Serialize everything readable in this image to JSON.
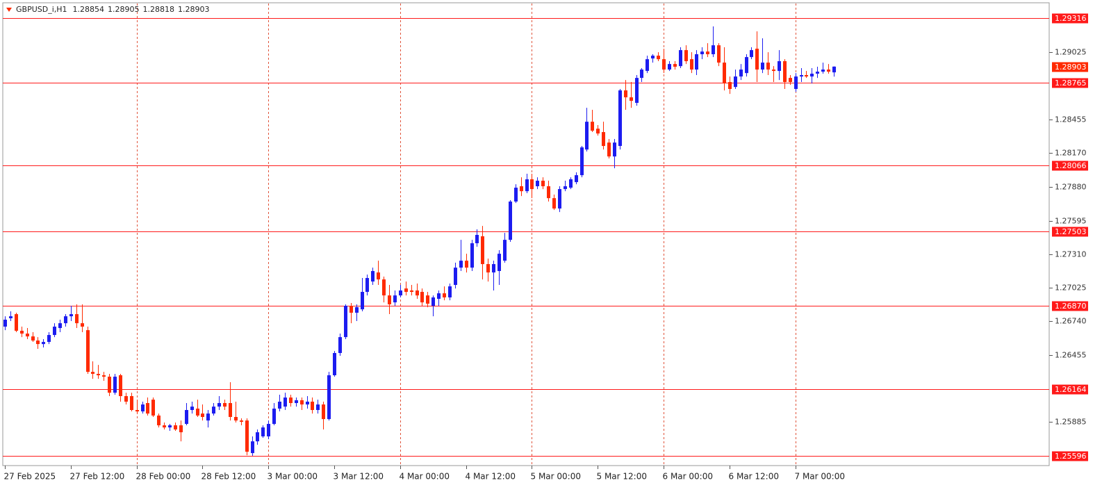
{
  "chart_data": {
    "type": "candlestick",
    "title": "GBPUSD_i,H1",
    "up_color": "#1c1cf0",
    "down_color": "#ff2a00",
    "level_color": "#ff1a1a",
    "categories": [
      "27 Feb 2025",
      null,
      null,
      null,
      null,
      null,
      null,
      null,
      null,
      null,
      null,
      null,
      "27 Feb 12:00",
      null,
      null,
      null,
      null,
      null,
      null,
      null,
      null,
      null,
      null,
      null,
      "28 Feb 00:00",
      null,
      null,
      null,
      null,
      null,
      null,
      null,
      null,
      null,
      null,
      null,
      "28 Feb 12:00",
      null,
      null,
      null,
      null,
      null,
      null,
      null,
      null,
      null,
      null,
      null,
      "3 Mar 00:00",
      null,
      null,
      null,
      null,
      null,
      null,
      null,
      null,
      null,
      null,
      null,
      "3 Mar 12:00",
      null,
      null,
      null,
      null,
      null,
      null,
      null,
      null,
      null,
      null,
      null,
      "4 Mar 00:00",
      null,
      null,
      null,
      null,
      null,
      null,
      null,
      null,
      null,
      null,
      null,
      "4 Mar 12:00",
      null,
      null,
      null,
      null,
      null,
      null,
      null,
      null,
      null,
      null,
      null,
      "5 Mar 00:00",
      null,
      null,
      null,
      null,
      null,
      null,
      null,
      null,
      null,
      null,
      null,
      "5 Mar 12:00",
      null,
      null,
      null,
      null,
      null,
      null,
      null,
      null,
      null,
      null,
      null,
      "6 Mar 00:00",
      null,
      null,
      null,
      null,
      null,
      null,
      null,
      null,
      null,
      null,
      null,
      "6 Mar 12:00",
      null,
      null,
      null,
      null,
      null,
      null,
      null,
      null,
      null,
      null,
      null,
      "7 Mar 00:00",
      null,
      null,
      null,
      null,
      null,
      null,
      null
    ],
    "open": [
      1.26695,
      1.26766,
      1.26801,
      1.2666,
      1.26636,
      1.26612,
      1.26577,
      1.26547,
      1.26565,
      1.26624,
      1.26683,
      1.26724,
      1.26783,
      1.26801,
      1.26724,
      1.26665,
      1.26311,
      1.26294,
      1.26282,
      1.2627,
      1.26134,
      1.26282,
      1.26105,
      1.26105,
      1.25987,
      1.25975,
      1.26046,
      1.26075,
      1.2594,
      1.25857,
      1.25839,
      1.25857,
      1.25857,
      1.25869,
      1.25987,
      1.25999,
      1.25957,
      1.25898,
      1.25957,
      1.26016,
      1.26046,
      1.26046,
      1.25928,
      1.25898,
      1.25898,
      1.25621,
      1.25721,
      1.25763,
      1.25763,
      1.25869,
      1.25999,
      1.26016,
      1.26093,
      1.26046,
      1.2607,
      1.26034,
      1.26058,
      1.25987,
      1.26034,
      1.2591,
      1.26282,
      1.26471,
      1.26606,
      1.26872,
      1.26813,
      1.26842,
      1.2699,
      1.27078,
      1.27155,
      1.27096,
      1.2696,
      1.26901,
      1.2696,
      1.27019,
      1.27002,
      1.27002,
      1.2699,
      1.2696,
      1.26872,
      1.26931,
      1.26978,
      1.26943,
      1.27049,
      1.27196,
      1.27255,
      1.27196,
      1.27403,
      1.27462,
      1.27226,
      1.27155,
      1.27167,
      1.27255,
      1.27432,
      1.27757,
      1.27887,
      1.27845,
      1.27946,
      1.27887,
      1.27934,
      1.27887,
      1.27786,
      1.27698,
      1.27863,
      1.27875,
      1.27922,
      1.27981,
      1.28199,
      1.28435,
      1.28376,
      1.28347,
      1.28258,
      1.2814,
      1.28229,
      1.28701,
      1.28642,
      1.28595,
      1.28807,
      1.28866,
      1.28972,
      1.28996,
      1.28966,
      1.28878,
      1.28925,
      1.28907,
      1.29043,
      1.28966,
      1.28878,
      1.29008,
      1.29031,
      1.29008,
      1.29084,
      1.28937,
      1.28772,
      1.2873,
      1.28819,
      1.28848,
      1.28984,
      1.29055,
      1.28878,
      1.28937,
      1.28878,
      1.28866,
      1.28949,
      1.28807,
      1.28713,
      1.28819,
      1.28831,
      1.28819,
      1.28843,
      1.2886,
      1.28878,
      1.28854
    ],
    "high": [
      1.26783,
      1.26825,
      1.26813,
      1.26695,
      1.26683,
      1.26648,
      1.26606,
      1.26589,
      1.26648,
      1.26724,
      1.26754,
      1.26801,
      1.26872,
      1.26884,
      1.26884,
      1.26695,
      1.264,
      1.2637,
      1.26311,
      1.26294,
      1.26294,
      1.26294,
      1.26134,
      1.26134,
      1.26075,
      1.26058,
      1.26093,
      1.26093,
      1.25957,
      1.25881,
      1.25869,
      1.25881,
      1.25898,
      1.26046,
      1.26058,
      1.26075,
      1.26034,
      1.25987,
      1.26046,
      1.26105,
      1.26075,
      1.26223,
      1.26058,
      1.25916,
      1.25916,
      1.25763,
      1.25822,
      1.25857,
      1.25898,
      1.26046,
      1.26117,
      1.26134,
      1.26117,
      1.26093,
      1.26093,
      1.26105,
      1.26093,
      1.26075,
      1.26058,
      1.26311,
      1.26488,
      1.26636,
      1.26884,
      1.26896,
      1.26884,
      1.27108,
      1.27137,
      1.27196,
      1.27255,
      1.2712,
      1.27049,
      1.27002,
      1.27049,
      1.27078,
      1.27049,
      1.27061,
      1.27019,
      1.2699,
      1.2696,
      1.27002,
      1.27037,
      1.27061,
      1.27238,
      1.27432,
      1.27314,
      1.27432,
      1.27521,
      1.2755,
      1.27273,
      1.27255,
      1.27344,
      1.27491,
      1.27769,
      1.27904,
      1.27963,
      1.27993,
      1.27993,
      1.27963,
      1.27963,
      1.27934,
      1.27816,
      1.27887,
      1.27934,
      1.27963,
      1.28005,
      1.28229,
      1.28553,
      1.28536,
      1.28406,
      1.28435,
      1.28288,
      1.28288,
      1.28713,
      1.28789,
      1.28772,
      1.28831,
      1.2889,
      1.28996,
      1.29008,
      1.29025,
      1.29055,
      1.28949,
      1.28949,
      1.29067,
      1.29084,
      1.29025,
      1.29043,
      1.29067,
      1.29102,
      1.29244,
      1.29102,
      1.29067,
      1.28819,
      1.28878,
      1.28925,
      1.29008,
      1.29067,
      1.29202,
      1.29143,
      1.29025,
      1.28907,
      1.29043,
      1.28966,
      1.28831,
      1.28848,
      1.2889,
      1.28866,
      1.2889,
      1.28902,
      1.28937,
      1.28925,
      1.28905
    ],
    "low": [
      1.26665,
      1.26742,
      1.26648,
      1.26606,
      1.26589,
      1.26565,
      1.26506,
      1.26518,
      1.26547,
      1.26606,
      1.26648,
      1.26695,
      1.26742,
      1.26683,
      1.26648,
      1.26294,
      1.26252,
      1.26252,
      1.26235,
      1.26105,
      1.26117,
      1.26058,
      1.26034,
      1.25975,
      1.25957,
      1.25957,
      1.2594,
      1.25928,
      1.25839,
      1.25822,
      1.2581,
      1.2581,
      1.25721,
      1.25857,
      1.25957,
      1.25928,
      1.25898,
      1.25839,
      1.2594,
      1.25987,
      1.25987,
      1.25898,
      1.25881,
      1.25857,
      1.25603,
      1.25598,
      1.25692,
      1.25751,
      1.25739,
      1.25857,
      1.25975,
      1.25987,
      1.26016,
      1.26016,
      1.25987,
      1.25999,
      1.25957,
      1.25957,
      1.25822,
      1.25898,
      1.2627,
      1.26447,
      1.26589,
      1.26724,
      1.26742,
      1.26825,
      1.2696,
      1.27049,
      1.27049,
      1.26901,
      1.26801,
      1.26872,
      1.26943,
      1.2696,
      1.2696,
      1.26931,
      1.26872,
      1.2686,
      1.26783,
      1.26872,
      1.26919,
      1.26919,
      1.27019,
      1.27167,
      1.27155,
      1.27167,
      1.27373,
      1.27096,
      1.27078,
      1.27002,
      1.27049,
      1.27238,
      1.27415,
      1.27745,
      1.27804,
      1.27828,
      1.27786,
      1.27863,
      1.27863,
      1.27757,
      1.27686,
      1.27668,
      1.27845,
      1.27863,
      1.27904,
      1.27963,
      1.28182,
      1.28347,
      1.28317,
      1.28199,
      1.28123,
      1.2804,
      1.28199,
      1.28536,
      1.28553,
      1.28571,
      1.28772,
      1.28848,
      1.28937,
      1.28949,
      1.28848,
      1.28866,
      1.28878,
      1.2889,
      1.28925,
      1.28848,
      1.28831,
      1.28966,
      1.28984,
      1.28984,
      1.28907,
      1.28701,
      1.28671,
      1.28713,
      1.28789,
      1.28819,
      1.28966,
      1.28772,
      1.28848,
      1.28831,
      1.28772,
      1.28789,
      1.28713,
      1.28748,
      1.28689,
      1.28772,
      1.28807,
      1.2876,
      1.28807,
      1.28843,
      1.28843,
      1.28818
    ],
    "close": [
      1.26754,
      1.26783,
      1.2666,
      1.26636,
      1.26612,
      1.26577,
      1.26547,
      1.26565,
      1.26624,
      1.26695,
      1.26724,
      1.26783,
      1.26801,
      1.26724,
      1.26695,
      1.26311,
      1.26294,
      1.26282,
      1.2627,
      1.26134,
      1.2627,
      1.26105,
      1.26058,
      1.25987,
      1.25975,
      1.26034,
      1.25957,
      1.2594,
      1.25857,
      1.25839,
      1.25857,
      1.25822,
      1.25798,
      1.25987,
      1.26016,
      1.2594,
      1.25928,
      1.25957,
      1.26016,
      1.26046,
      1.26016,
      1.25928,
      1.25898,
      1.25887,
      1.25633,
      1.25721,
      1.25798,
      1.25839,
      1.25869,
      1.25999,
      1.26058,
      1.26093,
      1.26046,
      1.2607,
      1.26034,
      1.26058,
      1.25987,
      1.26034,
      1.2591,
      1.26282,
      1.26471,
      1.26606,
      1.26872,
      1.26813,
      1.2686,
      1.2699,
      1.27108,
      1.27167,
      1.27096,
      1.2696,
      1.26884,
      1.2696,
      1.27002,
      1.2699,
      1.2699,
      1.2696,
      1.26901,
      1.2689,
      1.26943,
      1.26978,
      1.26943,
      1.27037,
      1.27196,
      1.27255,
      1.27196,
      1.27403,
      1.27474,
      1.27226,
      1.27155,
      1.27226,
      1.27314,
      1.27432,
      1.27757,
      1.27875,
      1.27845,
      1.27946,
      1.27863,
      1.27934,
      1.27887,
      1.27786,
      1.27698,
      1.27863,
      1.27887,
      1.27946,
      1.27981,
      1.28217,
      1.28435,
      1.28359,
      1.28335,
      1.28229,
      1.2814,
      1.28258,
      1.28701,
      1.28642,
      1.28612,
      1.28807,
      1.28878,
      1.28966,
      1.28996,
      1.28966,
      1.28878,
      1.28925,
      1.28902,
      1.29043,
      1.28949,
      1.28878,
      1.29008,
      1.29031,
      1.29008,
      1.29084,
      1.28937,
      1.2876,
      1.28713,
      1.28819,
      1.28878,
      1.28984,
      1.29043,
      1.28878,
      1.28937,
      1.28878,
      1.28866,
      1.28949,
      1.28772,
      1.28772,
      1.28819,
      1.28831,
      1.28819,
      1.28843,
      1.2886,
      1.28878,
      1.2886,
      1.28903
    ],
    "ylim": [
      1.25515,
      1.29439
    ],
    "yticks": [
      1.29025,
      1.28455,
      {
        "value": 1.2817,
        "label": "1.28170"
      },
      {
        "value": 1.2788,
        "label": "1.27880"
      },
      1.27595,
      {
        "value": 1.2731,
        "label": "1.27310"
      },
      1.27025,
      {
        "value": 1.2674,
        "label": "1.26740"
      },
      1.26455,
      1.25885
    ],
    "levels": [
      1.29316,
      1.28765,
      1.28066,
      1.27503,
      {
        "value": 1.2687,
        "label": "1.26870"
      },
      1.26164,
      1.25596
    ],
    "grid": true
  }
}
